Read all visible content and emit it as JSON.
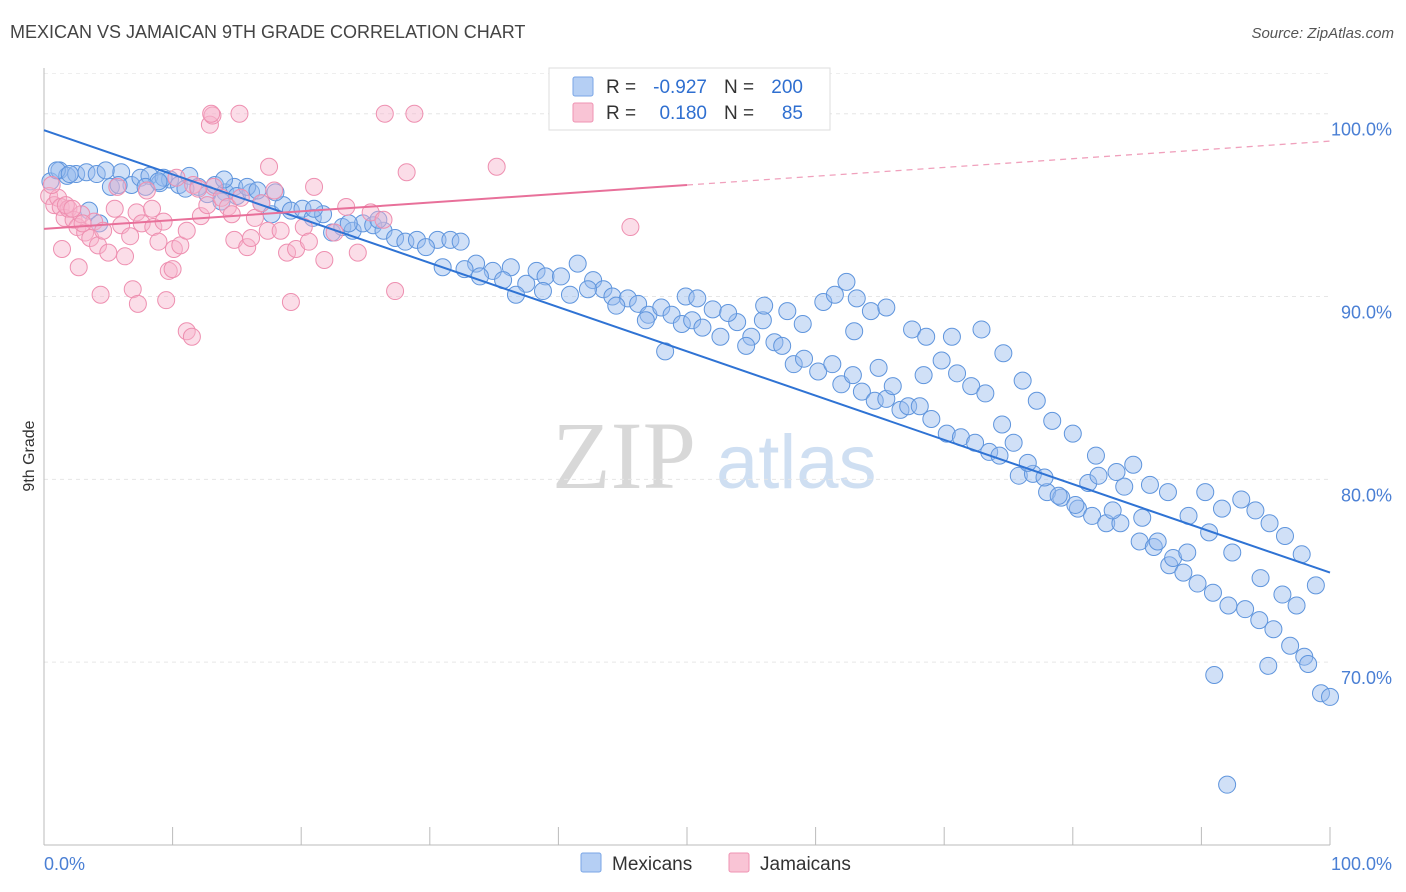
{
  "header": {
    "title": "MEXICAN VS JAMAICAN 9TH GRADE CORRELATION CHART",
    "source": "Source: ZipAtlas.com"
  },
  "watermark": {
    "zip": "ZIP",
    "atlas": "atlas"
  },
  "legend": {
    "rows": [
      {
        "r_label": "R =",
        "r_value": "-0.927",
        "n_label": "N =",
        "n_value": "200",
        "color": "#8fb6ef"
      },
      {
        "r_label": "R =",
        "r_value": "0.180",
        "n_label": "N =",
        "n_value": "85",
        "color": "#f5a9c2"
      }
    ]
  },
  "bottom_legend": [
    "Mexicans",
    "Jamaicans"
  ],
  "chart_data": {
    "type": "scatter",
    "title": "MEXICAN VS JAMAICAN 9TH GRADE CORRELATION CHART",
    "xlabel": "",
    "ylabel": "9th Grade",
    "xlim": [
      0,
      100
    ],
    "ylim": [
      60,
      102.5
    ],
    "x_tick_labels": [
      "0.0%",
      "100.0%"
    ],
    "y_ticks": [
      70,
      80,
      90,
      100
    ],
    "y_tick_labels": [
      "70.0%",
      "80.0%",
      "90.0%",
      "100.0%"
    ],
    "grid": true,
    "legend_position": "top-center",
    "colors": {
      "mexicans": "#4f8de0",
      "jamaicans": "#ee7aa2",
      "mexicans_fill": "#a9c7f2",
      "jamaicans_fill": "#f8bfd2"
    },
    "series": [
      {
        "name": "Mexicans",
        "trend": {
          "x": [
            0,
            100
          ],
          "y": [
            99.1,
            74.9
          ]
        },
        "points": [
          [
            0.5,
            96.3
          ],
          [
            1.2,
            96.9
          ],
          [
            1.8,
            96.6
          ],
          [
            2.5,
            96.7
          ],
          [
            3.3,
            96.8
          ],
          [
            4.1,
            96.7
          ],
          [
            5.2,
            96.0
          ],
          [
            6.0,
            96.8
          ],
          [
            6.8,
            96.1
          ],
          [
            7.5,
            96.5
          ],
          [
            8.2,
            96.6
          ],
          [
            9.0,
            96.2
          ],
          [
            9.8,
            96.4
          ],
          [
            10.5,
            96.1
          ],
          [
            11.3,
            96.6
          ],
          [
            12.0,
            96.0
          ],
          [
            12.7,
            95.6
          ],
          [
            13.3,
            96.1
          ],
          [
            14.1,
            95.7
          ],
          [
            14.8,
            96.0
          ],
          [
            3.5,
            94.7
          ],
          [
            4.3,
            94.0
          ],
          [
            5.8,
            96.1
          ],
          [
            7.9,
            96.0
          ],
          [
            11.0,
            95.9
          ],
          [
            13.8,
            95.2
          ],
          [
            15.0,
            95.5
          ],
          [
            16.1,
            95.7
          ],
          [
            16.9,
            95.1
          ],
          [
            17.7,
            94.5
          ],
          [
            18.6,
            95.0
          ],
          [
            19.2,
            94.7
          ],
          [
            20.1,
            94.8
          ],
          [
            20.9,
            94.3
          ],
          [
            21.7,
            94.5
          ],
          [
            22.4,
            93.5
          ],
          [
            23.2,
            93.8
          ],
          [
            24.0,
            93.6
          ],
          [
            24.8,
            94.0
          ],
          [
            25.6,
            93.9
          ],
          [
            26.4,
            93.6
          ],
          [
            27.3,
            93.2
          ],
          [
            28.1,
            93.0
          ],
          [
            29.0,
            93.1
          ],
          [
            30.6,
            93.1
          ],
          [
            31.6,
            93.1
          ],
          [
            32.4,
            93.0
          ],
          [
            33.6,
            91.8
          ],
          [
            34.9,
            91.4
          ],
          [
            36.3,
            91.6
          ],
          [
            37.5,
            90.7
          ],
          [
            38.3,
            91.4
          ],
          [
            39.0,
            91.1
          ],
          [
            40.2,
            91.1
          ],
          [
            41.5,
            91.8
          ],
          [
            42.7,
            90.9
          ],
          [
            43.5,
            90.4
          ],
          [
            44.2,
            90.0
          ],
          [
            45.4,
            89.9
          ],
          [
            46.2,
            89.6
          ],
          [
            47.0,
            89.0
          ],
          [
            48.0,
            89.4
          ],
          [
            48.8,
            89.0
          ],
          [
            49.6,
            88.5
          ],
          [
            50.4,
            88.7
          ],
          [
            51.2,
            88.3
          ],
          [
            52.6,
            87.8
          ],
          [
            53.9,
            88.6
          ],
          [
            55.0,
            87.8
          ],
          [
            55.9,
            88.7
          ],
          [
            56.8,
            87.5
          ],
          [
            57.4,
            87.3
          ],
          [
            58.3,
            86.3
          ],
          [
            59.1,
            86.6
          ],
          [
            60.2,
            85.9
          ],
          [
            61.3,
            86.3
          ],
          [
            62.0,
            85.2
          ],
          [
            62.9,
            85.7
          ],
          [
            63.6,
            84.8
          ],
          [
            64.6,
            84.3
          ],
          [
            65.5,
            84.4
          ],
          [
            66.6,
            83.8
          ],
          [
            67.2,
            84.0
          ],
          [
            68.1,
            84.0
          ],
          [
            69.0,
            83.3
          ],
          [
            70.2,
            82.5
          ],
          [
            71.3,
            82.3
          ],
          [
            72.4,
            82.0
          ],
          [
            73.5,
            81.5
          ],
          [
            74.3,
            81.3
          ],
          [
            75.8,
            80.2
          ],
          [
            76.9,
            80.3
          ],
          [
            78.0,
            79.3
          ],
          [
            79.1,
            79.0
          ],
          [
            80.4,
            78.4
          ],
          [
            81.5,
            78.0
          ],
          [
            82.6,
            77.6
          ],
          [
            83.7,
            77.6
          ],
          [
            85.2,
            76.6
          ],
          [
            86.3,
            76.3
          ],
          [
            87.5,
            75.3
          ],
          [
            88.6,
            74.9
          ],
          [
            89.7,
            74.3
          ],
          [
            90.9,
            73.8
          ],
          [
            92.1,
            73.1
          ],
          [
            93.4,
            72.9
          ],
          [
            94.5,
            72.3
          ],
          [
            95.6,
            71.8
          ],
          [
            96.9,
            70.9
          ],
          [
            98.0,
            70.3
          ],
          [
            99.3,
            68.3
          ],
          [
            100.0,
            68.1
          ],
          [
            1.0,
            96.9
          ],
          [
            2.0,
            96.7
          ],
          [
            4.8,
            96.9
          ],
          [
            9.3,
            96.5
          ],
          [
            14.0,
            96.4
          ],
          [
            15.8,
            96.0
          ],
          [
            18.0,
            95.7
          ],
          [
            8.9,
            96.3
          ],
          [
            16.6,
            95.8
          ],
          [
            21.0,
            94.8
          ],
          [
            23.7,
            94.0
          ],
          [
            26.0,
            94.2
          ],
          [
            29.7,
            92.7
          ],
          [
            31.0,
            91.6
          ],
          [
            32.7,
            91.5
          ],
          [
            33.9,
            91.1
          ],
          [
            35.7,
            90.9
          ],
          [
            36.7,
            90.1
          ],
          [
            38.8,
            90.3
          ],
          [
            40.9,
            90.1
          ],
          [
            42.3,
            90.4
          ],
          [
            44.5,
            89.5
          ],
          [
            46.8,
            88.7
          ],
          [
            48.3,
            87.0
          ],
          [
            49.9,
            90.0
          ],
          [
            50.8,
            89.9
          ],
          [
            52.0,
            89.3
          ],
          [
            53.2,
            89.1
          ],
          [
            54.6,
            87.3
          ],
          [
            56.0,
            89.5
          ],
          [
            57.8,
            89.2
          ],
          [
            59.0,
            88.5
          ],
          [
            60.6,
            89.7
          ],
          [
            61.5,
            90.1
          ],
          [
            62.4,
            90.8
          ],
          [
            63.2,
            89.9
          ],
          [
            64.3,
            89.2
          ],
          [
            65.5,
            89.4
          ],
          [
            67.5,
            88.2
          ],
          [
            68.6,
            87.8
          ],
          [
            69.8,
            86.5
          ],
          [
            71.0,
            85.8
          ],
          [
            72.1,
            85.1
          ],
          [
            73.2,
            84.7
          ],
          [
            74.5,
            83.0
          ],
          [
            75.4,
            82.0
          ],
          [
            76.5,
            80.9
          ],
          [
            77.8,
            80.1
          ],
          [
            78.9,
            79.1
          ],
          [
            80.2,
            78.6
          ],
          [
            81.2,
            79.8
          ],
          [
            82.0,
            80.2
          ],
          [
            83.1,
            78.3
          ],
          [
            84.0,
            79.6
          ],
          [
            85.4,
            77.9
          ],
          [
            86.6,
            76.6
          ],
          [
            87.8,
            75.7
          ],
          [
            88.9,
            76.0
          ],
          [
            90.3,
            79.3
          ],
          [
            91.6,
            78.4
          ],
          [
            93.1,
            78.9
          ],
          [
            94.2,
            78.3
          ],
          [
            95.3,
            77.6
          ],
          [
            96.5,
            76.9
          ],
          [
            97.8,
            75.9
          ],
          [
            98.9,
            74.2
          ],
          [
            63.0,
            88.1
          ],
          [
            64.9,
            86.1
          ],
          [
            66.0,
            85.1
          ],
          [
            68.4,
            85.7
          ],
          [
            70.6,
            87.8
          ],
          [
            72.9,
            88.2
          ],
          [
            74.6,
            86.9
          ],
          [
            76.1,
            85.4
          ],
          [
            77.2,
            84.3
          ],
          [
            78.4,
            83.2
          ],
          [
            80.0,
            82.5
          ],
          [
            81.8,
            81.3
          ],
          [
            83.4,
            80.4
          ],
          [
            84.7,
            80.8
          ],
          [
            86.0,
            79.7
          ],
          [
            87.4,
            79.3
          ],
          [
            89.0,
            78.0
          ],
          [
            90.6,
            77.1
          ],
          [
            92.4,
            76.0
          ],
          [
            94.6,
            74.6
          ],
          [
            96.3,
            73.7
          ],
          [
            97.4,
            73.1
          ],
          [
            91.0,
            69.3
          ],
          [
            95.2,
            69.8
          ],
          [
            98.3,
            69.9
          ],
          [
            92.0,
            63.3
          ]
        ]
      },
      {
        "name": "Jamaicans",
        "trend": {
          "x": [
            0,
            50
          ],
          "y": [
            93.7,
            96.1
          ]
        },
        "points": [
          [
            0.4,
            95.5
          ],
          [
            0.8,
            95.0
          ],
          [
            1.1,
            95.4
          ],
          [
            1.3,
            94.9
          ],
          [
            1.6,
            94.3
          ],
          [
            1.9,
            94.8
          ],
          [
            2.3,
            94.2
          ],
          [
            2.6,
            93.8
          ],
          [
            2.9,
            94.5
          ],
          [
            3.2,
            93.5
          ],
          [
            3.6,
            93.2
          ],
          [
            3.9,
            94.1
          ],
          [
            4.2,
            92.8
          ],
          [
            4.6,
            93.6
          ],
          [
            5.0,
            92.4
          ],
          [
            5.5,
            94.8
          ],
          [
            6.0,
            93.9
          ],
          [
            6.3,
            92.2
          ],
          [
            6.7,
            93.3
          ],
          [
            7.2,
            94.6
          ],
          [
            7.6,
            94.0
          ],
          [
            8.0,
            95.8
          ],
          [
            8.5,
            93.8
          ],
          [
            8.9,
            93.0
          ],
          [
            9.3,
            94.1
          ],
          [
            9.7,
            91.4
          ],
          [
            10.1,
            92.6
          ],
          [
            10.6,
            92.8
          ],
          [
            11.1,
            93.6
          ],
          [
            11.6,
            96.1
          ],
          [
            12.2,
            94.4
          ],
          [
            12.7,
            95.0
          ],
          [
            13.2,
            96.0
          ],
          [
            13.8,
            95.4
          ],
          [
            14.3,
            94.9
          ],
          [
            14.8,
            93.1
          ],
          [
            15.3,
            95.4
          ],
          [
            15.8,
            92.7
          ],
          [
            16.4,
            94.3
          ],
          [
            16.9,
            95.1
          ],
          [
            17.4,
            93.6
          ],
          [
            17.9,
            95.8
          ],
          [
            18.4,
            93.6
          ],
          [
            18.9,
            92.4
          ],
          [
            19.6,
            92.6
          ],
          [
            20.2,
            93.8
          ],
          [
            21.0,
            96.0
          ],
          [
            21.8,
            92.0
          ],
          [
            22.6,
            93.5
          ],
          [
            23.5,
            94.9
          ],
          [
            24.4,
            92.4
          ],
          [
            25.4,
            94.6
          ],
          [
            26.4,
            94.2
          ],
          [
            27.3,
            90.3
          ],
          [
            28.2,
            96.8
          ],
          [
            0.6,
            96.1
          ],
          [
            1.4,
            92.6
          ],
          [
            2.7,
            91.6
          ],
          [
            4.4,
            90.1
          ],
          [
            6.9,
            90.4
          ],
          [
            7.3,
            89.6
          ],
          [
            9.5,
            89.8
          ],
          [
            10.0,
            91.5
          ],
          [
            11.1,
            88.1
          ],
          [
            11.5,
            87.8
          ],
          [
            12.9,
            99.4
          ],
          [
            13.1,
            99.9
          ],
          [
            13.0,
            100.0
          ],
          [
            15.2,
            100.0
          ],
          [
            19.2,
            89.7
          ],
          [
            26.5,
            100.0
          ],
          [
            28.8,
            100.0
          ],
          [
            17.5,
            97.1
          ],
          [
            35.2,
            97.1
          ],
          [
            45.6,
            93.8
          ],
          [
            1.7,
            95.0
          ],
          [
            2.2,
            94.8
          ],
          [
            3.0,
            94.0
          ],
          [
            5.7,
            96.0
          ],
          [
            8.4,
            94.8
          ],
          [
            10.3,
            96.5
          ],
          [
            12.0,
            95.9
          ],
          [
            14.6,
            94.5
          ],
          [
            16.1,
            93.2
          ],
          [
            20.6,
            93.0
          ]
        ]
      }
    ]
  }
}
